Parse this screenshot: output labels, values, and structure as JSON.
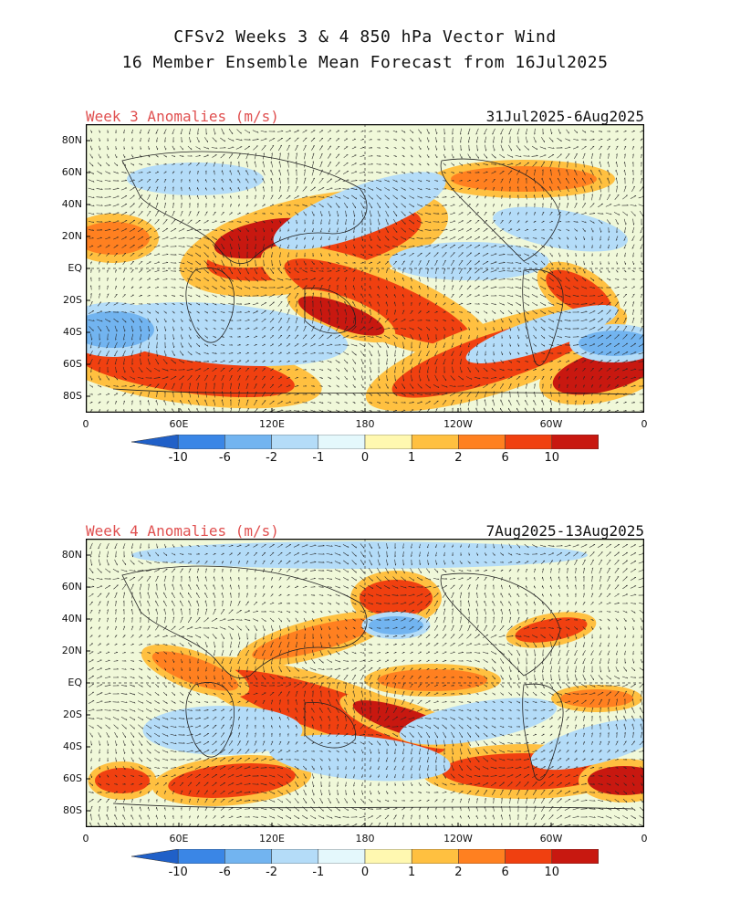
{
  "header": {
    "title_line1": "CFSv2 Weeks 3 & 4 850 hPa Vector Wind",
    "title_line2": "16 Member Ensemble Mean Forecast from 16Jul2025"
  },
  "panels": [
    {
      "label": "Week 3 Anomalies (m/s)",
      "date_range": "31Jul2025-6Aug2025"
    },
    {
      "label": "Week 4 Anomalies (m/s)",
      "date_range": "7Aug2025-13Aug2025"
    }
  ],
  "axes": {
    "lat_labels": [
      "80N",
      "60N",
      "40N",
      "20N",
      "EQ",
      "20S",
      "40S",
      "60S",
      "80S"
    ],
    "lon_labels": [
      "0",
      "60E",
      "120E",
      "180",
      "120W",
      "60W",
      "0"
    ]
  },
  "colorbar": {
    "tick_labels": [
      "-10",
      "-6",
      "-2",
      "-1",
      "0",
      "1",
      "2",
      "6",
      "10"
    ],
    "colors": [
      "#2060c8",
      "#3a86e6",
      "#72b4f0",
      "#b4dcf8",
      "#e4f8fc",
      "#fff8b0",
      "#ffc040",
      "#ff8020",
      "#f04010",
      "#c81810",
      "#a00808"
    ]
  }
}
